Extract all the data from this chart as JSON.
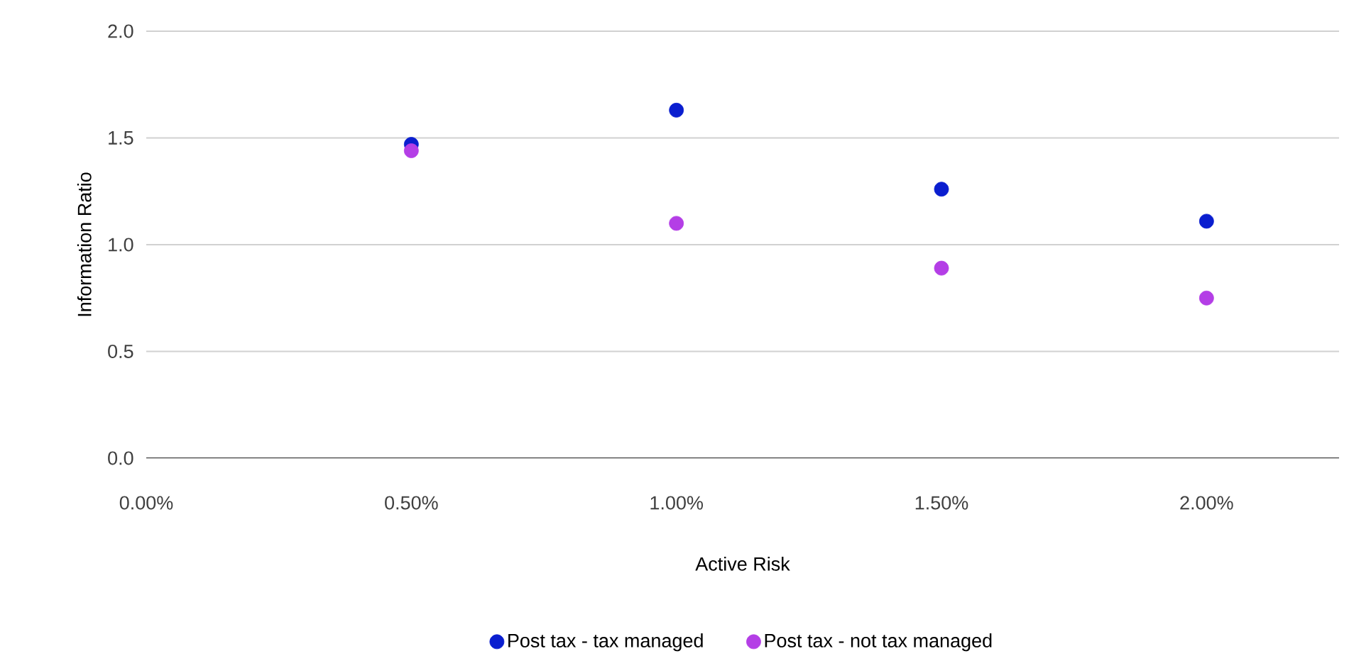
{
  "chart_data": {
    "type": "scatter",
    "xlabel": "Active Risk",
    "ylabel": "Information Ratio",
    "x": [
      0.5,
      1.0,
      1.5,
      2.0
    ],
    "series": [
      {
        "name": "Post tax - tax managed",
        "color": "#0a1ecf",
        "values": [
          1.47,
          1.63,
          1.26,
          1.11
        ]
      },
      {
        "name": "Post tax - not tax managed",
        "color": "#b43ee6",
        "values": [
          1.44,
          1.1,
          0.89,
          0.75
        ]
      }
    ],
    "xlim": [
      0,
      2.25
    ],
    "ylim": [
      0,
      2.0
    ],
    "xticks": [
      {
        "value": 0,
        "label": "0.00%"
      },
      {
        "value": 0.5,
        "label": "0.50%"
      },
      {
        "value": 1.0,
        "label": "1.00%"
      },
      {
        "value": 1.5,
        "label": "1.50%"
      },
      {
        "value": 2.0,
        "label": "2.00%"
      }
    ],
    "yticks": [
      {
        "value": 0,
        "label": "0.0"
      },
      {
        "value": 0.5,
        "label": "0.5"
      },
      {
        "value": 1.0,
        "label": "1.0"
      },
      {
        "value": 1.5,
        "label": "1.5"
      },
      {
        "value": 2.0,
        "label": "2.0"
      }
    ],
    "grid": "y",
    "legend": "bottom",
    "marker": "circle"
  }
}
